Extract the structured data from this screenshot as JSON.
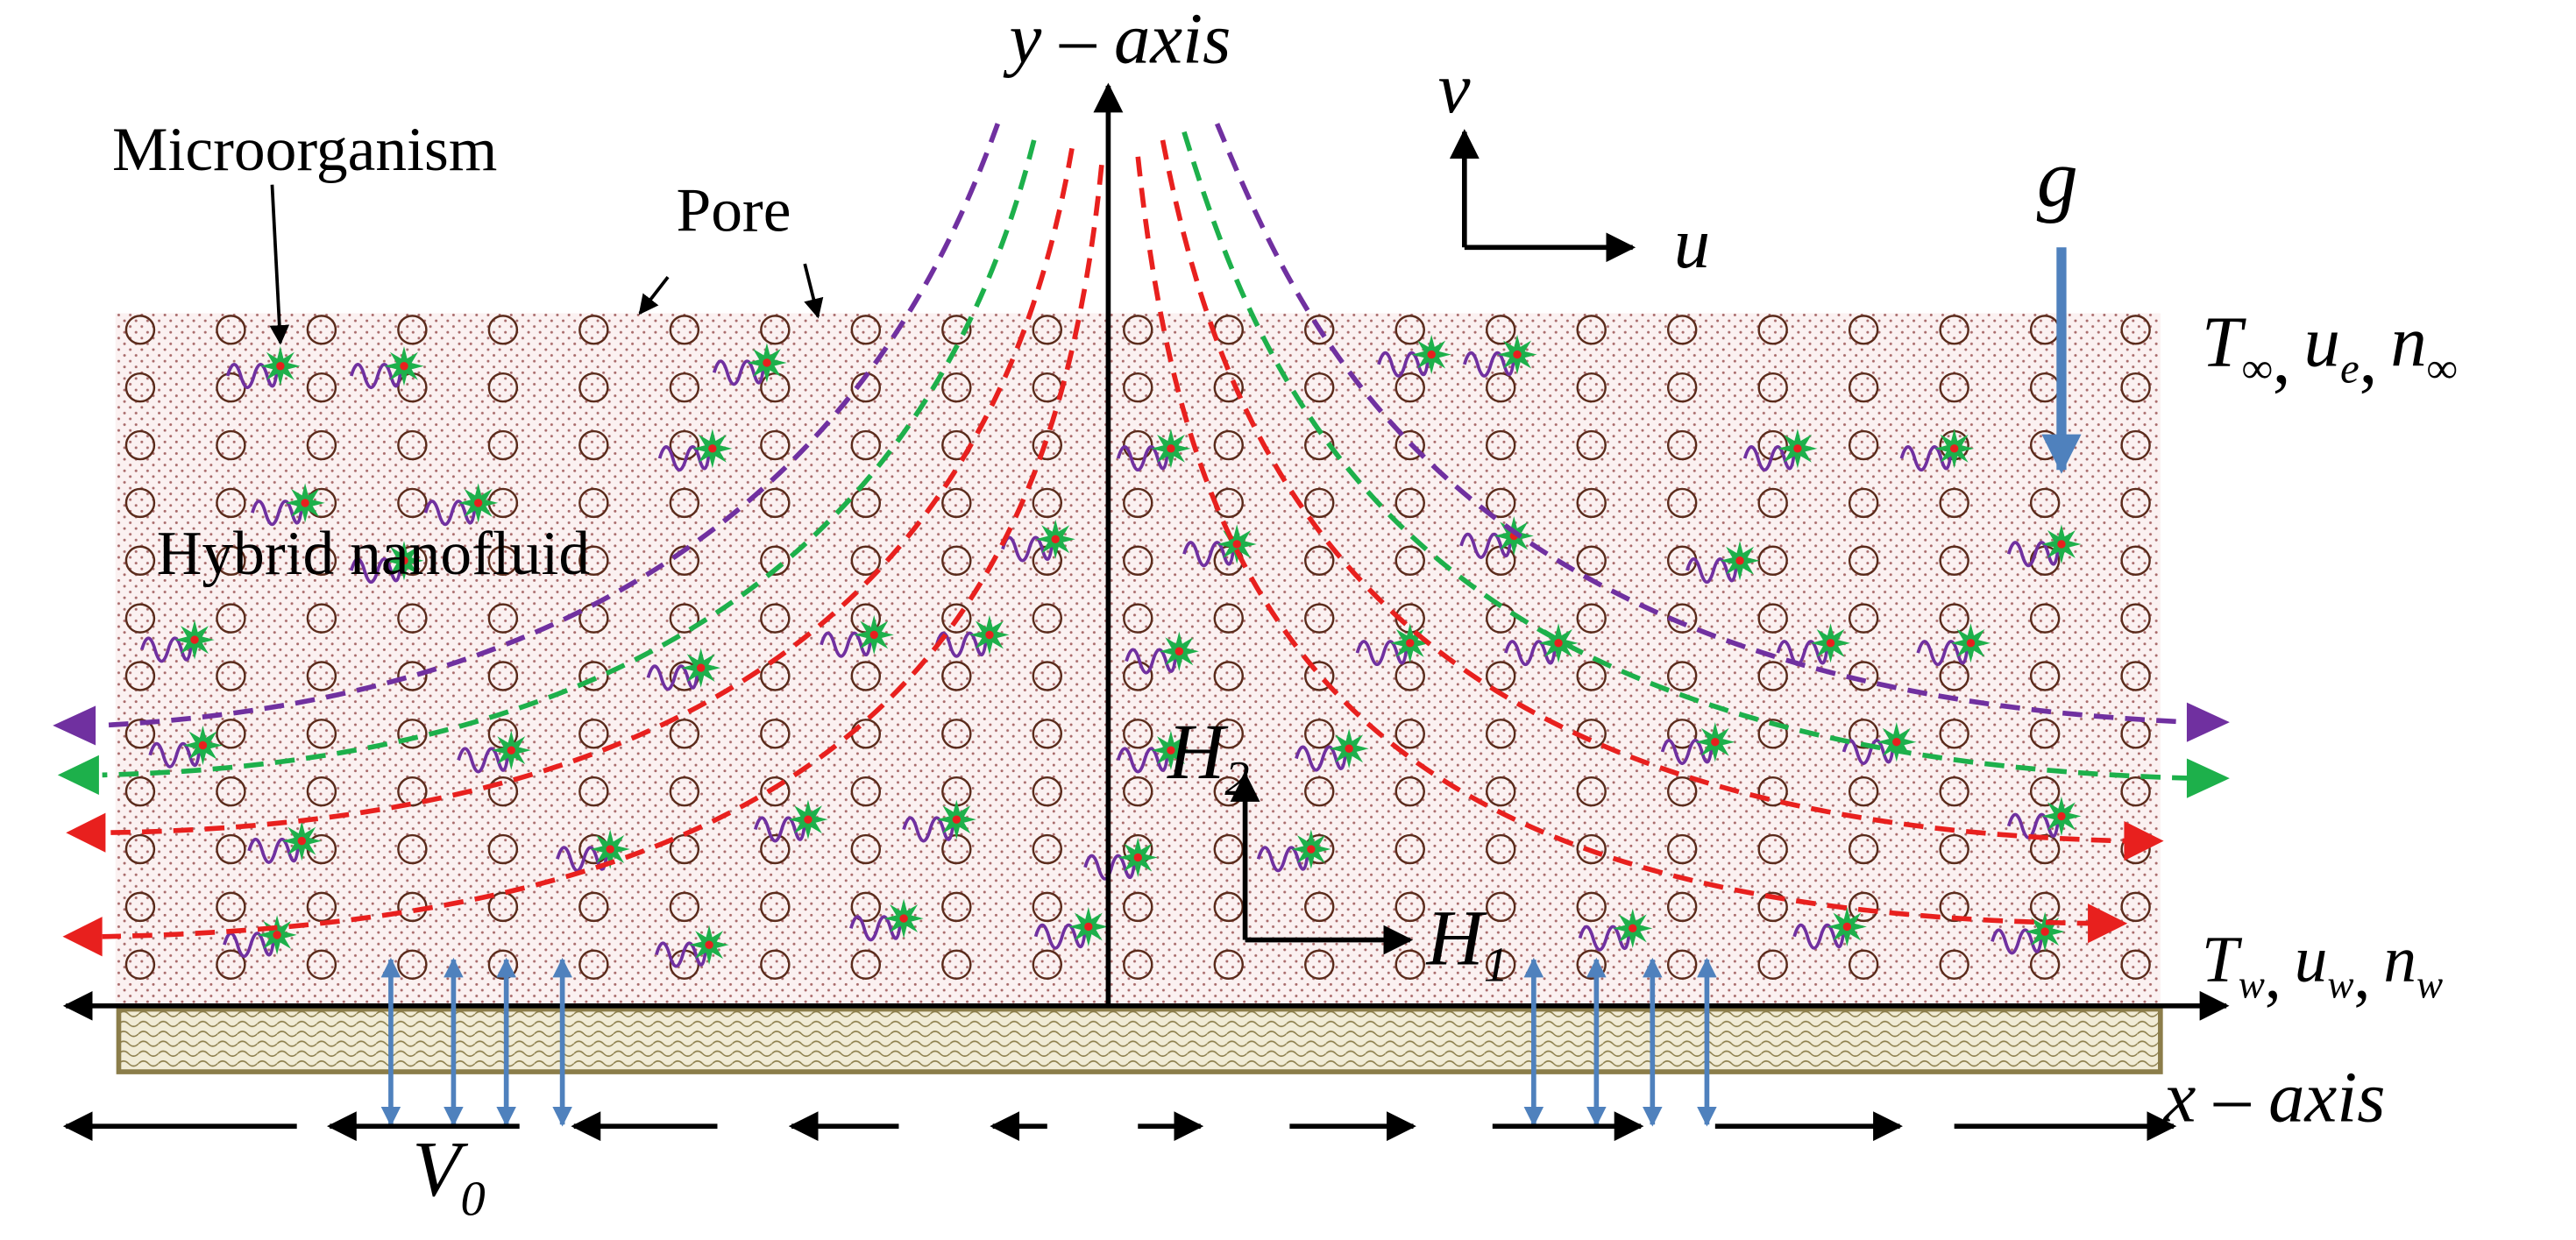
{
  "axes": {
    "y": "y – axis",
    "x": "x – axis"
  },
  "velocity": {
    "v": "v",
    "u": "u"
  },
  "gravity": "g",
  "labels": {
    "microorganism": "Microorganism",
    "pore": "Pore",
    "fluid": "Hybrid nanofluid"
  },
  "free_stream": {
    "separator": ",",
    "items": [
      {
        "symbol": "T",
        "sub": "∞"
      },
      {
        "symbol": "u",
        "sub": "e"
      },
      {
        "symbol": "n",
        "sub": "∞"
      }
    ]
  },
  "wall": {
    "separator": ",",
    "items": [
      {
        "symbol": "T",
        "sub": "w"
      },
      {
        "symbol": "u",
        "sub": "w"
      },
      {
        "symbol": "n",
        "sub": "w"
      }
    ]
  },
  "magnetic": {
    "h2": {
      "symbol": "H",
      "sub": "2"
    },
    "h1": {
      "symbol": "H",
      "sub": "1"
    }
  },
  "suction": {
    "symbol": "V",
    "sub": "0"
  }
}
